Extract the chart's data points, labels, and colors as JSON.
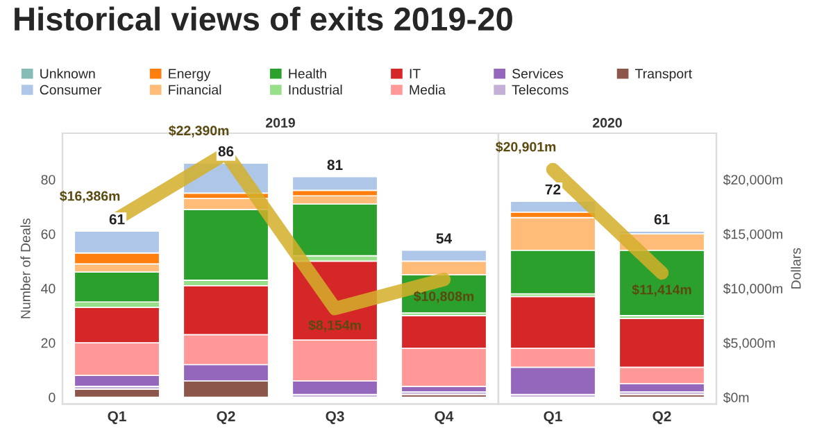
{
  "chart_data": [
    {
      "type": "bar",
      "title": "Historical views of exits 2019-20",
      "subtitle": "2019",
      "ylabel": "Number of Deals",
      "categories": [
        "Q1",
        "Q2",
        "Q3",
        "Q4"
      ],
      "stacked": true,
      "legend": "top",
      "ylim": [
        -2.5,
        97
      ],
      "yticks": [
        0,
        20,
        40,
        60,
        80
      ],
      "y2lim": [
        -625,
        24250
      ],
      "tick_labels": [
        "x",
        "y"
      ],
      "totals": [
        "61",
        "86",
        "81",
        "54"
      ],
      "series": [
        {
          "name": "Transport",
          "color": "#8c564b",
          "values": [
            3,
            6,
            0,
            1
          ]
        },
        {
          "name": "Telecoms",
          "color": "#c5b0d5",
          "values": [
            1,
            0,
            1,
            1
          ]
        },
        {
          "name": "Services",
          "color": "#9467bd",
          "values": [
            4,
            6,
            5,
            2
          ]
        },
        {
          "name": "Media",
          "color": "#ff9896",
          "values": [
            12,
            11,
            15,
            14
          ]
        },
        {
          "name": "IT",
          "color": "#d62728",
          "values": [
            13,
            18,
            29,
            12
          ]
        },
        {
          "name": "Industrial",
          "color": "#98df8a",
          "values": [
            2,
            2,
            2,
            1
          ]
        },
        {
          "name": "Health",
          "color": "#2ca02c",
          "values": [
            11,
            26,
            19,
            14
          ]
        },
        {
          "name": "Financial",
          "color": "#ffbb78",
          "values": [
            3,
            4,
            3,
            5
          ]
        },
        {
          "name": "Energy",
          "color": "#ff7f0e",
          "values": [
            4,
            2,
            2,
            0
          ]
        },
        {
          "name": "Consumer",
          "color": "#aec7e8",
          "values": [
            8,
            11,
            5,
            4
          ]
        },
        {
          "name": "Unknown",
          "color": "#86bcb6",
          "values": [
            0,
            0,
            0,
            0
          ]
        },
        {
          "type": "line",
          "axis": "y2",
          "color": "#d4af2a",
          "values": [
            16386,
            22390,
            8154,
            10808
          ],
          "value_labels": [
            "$16,386m",
            "$22,390m",
            "$8,154m",
            "$10,808m"
          ]
        }
      ]
    },
    {
      "type": "bar",
      "subtitle": "2020",
      "y2label": "Dollars",
      "categories": [
        "Q1",
        "Q2"
      ],
      "stacked": true,
      "ylim": [
        -2.5,
        97
      ],
      "y2lim": [
        -625,
        24250
      ],
      "y2ticks": [
        {
          "value": 0,
          "label": "$0m"
        },
        {
          "value": 5000,
          "label": "$5,000m"
        },
        {
          "value": 10000,
          "label": "$10,000m"
        },
        {
          "value": 15000,
          "label": "$15,000m"
        },
        {
          "value": 20000,
          "label": "$20,000m"
        }
      ],
      "tick_labels": [
        "x",
        "y2"
      ],
      "totals": [
        "72",
        "61"
      ],
      "series": [
        {
          "color": "#8c564b",
          "values": [
            0,
            1
          ]
        },
        {
          "color": "#c5b0d5",
          "values": [
            1,
            1
          ]
        },
        {
          "color": "#9467bd",
          "values": [
            10,
            3
          ]
        },
        {
          "color": "#ff9896",
          "values": [
            7,
            6
          ]
        },
        {
          "color": "#d62728",
          "values": [
            19,
            18
          ]
        },
        {
          "color": "#98df8a",
          "values": [
            1,
            1
          ]
        },
        {
          "color": "#2ca02c",
          "values": [
            16,
            24
          ]
        },
        {
          "color": "#ffbb78",
          "values": [
            12,
            6
          ]
        },
        {
          "color": "#ff7f0e",
          "values": [
            2,
            0
          ]
        },
        {
          "color": "#aec7e8",
          "values": [
            4,
            1
          ]
        },
        {
          "color": "#86bcb6",
          "values": [
            0,
            0
          ]
        },
        {
          "type": "line",
          "axis": "y2",
          "color": "#d4af2a",
          "values": [
            20901,
            11414
          ],
          "value_labels": [
            "$20,901m",
            "$11,414m"
          ]
        }
      ]
    }
  ]
}
